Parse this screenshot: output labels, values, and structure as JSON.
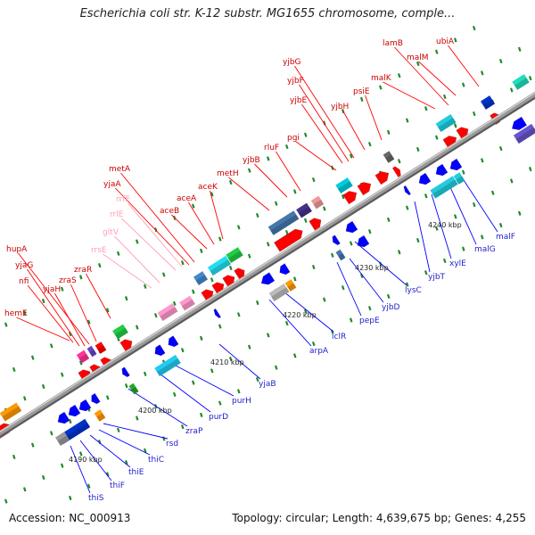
{
  "header": {
    "title": "Escherichia coli str. K-12 substr. MG1655 chromosome, comple..."
  },
  "footer": {
    "accession": "Accession: NC_000913",
    "stats": "Topology: circular; Length: 4,639,675 bp; Genes: 4,255"
  },
  "colors": {
    "forward_label": "#ff0000",
    "forward_rna_label": "#ffa0b4",
    "reverse_label": "#0000ff",
    "backbone": "#9a9a9a",
    "tick_mark": "#1f8a2a",
    "forward_gene": "#ff0000",
    "reverse_gene": "#0000ff"
  },
  "map": {
    "scale_labels": [
      "4190 kbp",
      "4200 kbp",
      "4210 kbp",
      "4220 kbp",
      "4230 kbp",
      "4240 kbp"
    ],
    "forward_labels": [
      {
        "text": "hemE",
        "rna": false
      },
      {
        "text": "nfi",
        "rna": false
      },
      {
        "text": "yjaG",
        "rna": false
      },
      {
        "text": "yjaH",
        "rna": false
      },
      {
        "text": "hupA",
        "rna": false
      },
      {
        "text": "zraS",
        "rna": false
      },
      {
        "text": "zraR",
        "rna": false
      },
      {
        "text": "rrsE",
        "rna": true
      },
      {
        "text": "gltV",
        "rna": true
      },
      {
        "text": "rrlE",
        "rna": true
      },
      {
        "text": "rrfE",
        "rna": true
      },
      {
        "text": "yjaA",
        "rna": false
      },
      {
        "text": "metA",
        "rna": false
      },
      {
        "text": "aceB",
        "rna": false
      },
      {
        "text": "aceA",
        "rna": false
      },
      {
        "text": "aceK",
        "rna": false
      },
      {
        "text": "metH",
        "rna": false
      },
      {
        "text": "yjbB",
        "rna": false
      },
      {
        "text": "rluF",
        "rna": false
      },
      {
        "text": "pgi",
        "rna": false
      },
      {
        "text": "yjbE",
        "rna": false
      },
      {
        "text": "yjbF",
        "rna": false
      },
      {
        "text": "yjbG",
        "rna": false
      },
      {
        "text": "yjbH",
        "rna": false
      },
      {
        "text": "psiE",
        "rna": false
      },
      {
        "text": "malK",
        "rna": false
      },
      {
        "text": "lamB",
        "rna": false
      },
      {
        "text": "malM",
        "rna": false
      },
      {
        "text": "ubiA",
        "rna": false
      }
    ],
    "reverse_labels": [
      "thiS",
      "thiF",
      "thiE",
      "thiC",
      "rsd",
      "zraP",
      "purD",
      "purH",
      "yjaB",
      "arpA",
      "iclR",
      "pepE",
      "yjbD",
      "lysC",
      "yjbT",
      "xylE",
      "malG",
      "malF"
    ]
  }
}
